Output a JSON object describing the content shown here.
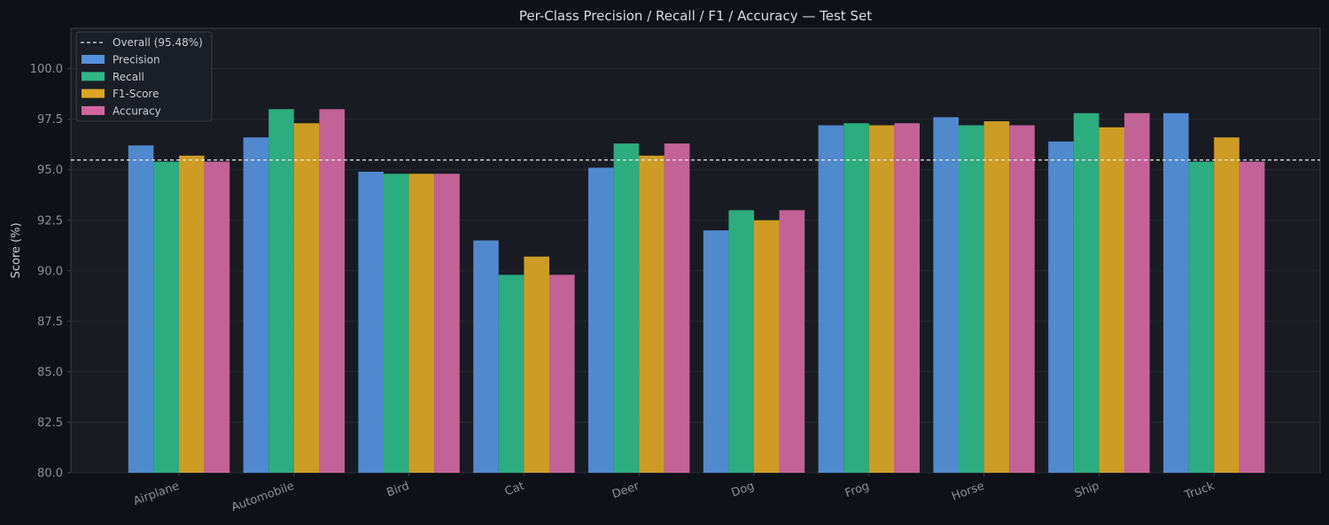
{
  "chart_data": {
    "type": "bar",
    "title": "Per-Class Precision / Recall / F1 / Accuracy — Test Set",
    "xlabel": "",
    "ylabel": "Score (%)",
    "ylim": [
      80,
      102
    ],
    "yticks": [
      "80.0",
      "82.5",
      "85.0",
      "87.5",
      "90.0",
      "92.5",
      "95.0",
      "97.5",
      "100.0"
    ],
    "categories": [
      "Airplane",
      "Automobile",
      "Bird",
      "Cat",
      "Deer",
      "Dog",
      "Frog",
      "Horse",
      "Ship",
      "Truck"
    ],
    "series": [
      {
        "name": "Precision",
        "color": "#5591db",
        "values": [
          96.2,
          96.6,
          94.9,
          91.5,
          95.1,
          92.0,
          97.2,
          97.6,
          96.4,
          97.8
        ]
      },
      {
        "name": "Recall",
        "color": "#2fb786",
        "values": [
          95.4,
          98.0,
          94.8,
          89.8,
          96.3,
          93.0,
          97.3,
          97.2,
          97.8,
          95.4
        ]
      },
      {
        "name": "F1-Score",
        "color": "#dca626",
        "values": [
          95.7,
          97.3,
          94.8,
          90.7,
          95.7,
          92.5,
          97.2,
          97.4,
          97.1,
          96.6
        ]
      },
      {
        "name": "Accuracy",
        "color": "#d1679f",
        "values": [
          95.4,
          98.0,
          94.8,
          89.8,
          96.3,
          93.0,
          97.3,
          97.2,
          97.8,
          95.4
        ]
      }
    ],
    "reference_line": {
      "label": "Overall (95.48%)",
      "value": 95.48,
      "style": "dashed",
      "color": "#e8eaed"
    },
    "grid": true,
    "legend_position": "top-left",
    "colors": {
      "background": "#0e1117",
      "plot_background": "#181b22",
      "grid": "#272b33",
      "axis": "#3a3f48"
    }
  }
}
